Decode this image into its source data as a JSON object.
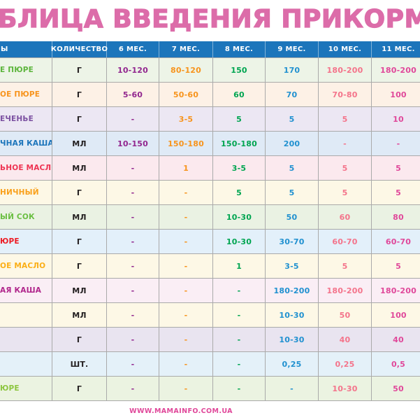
{
  "title": "БЛИЦА ВВЕДЕНИЯ ПРИКОРМА",
  "footer": {
    "url": "WWW.MAMAINFO.COM.UA"
  },
  "colors": {
    "title_pink": "#dc6ca9",
    "header_bg": "#1c75bb",
    "header_text": "#ffffff",
    "grid_border": "#aaaaaa",
    "unit_text": "#231f20",
    "footer_pink": "#e0489a"
  },
  "chart_data": {
    "type": "table",
    "title": "БЛИЦА ВВЕДЕНИЯ ПРИКОРМА",
    "columns": [
      "Ы",
      "КОЛИЧЕСТВО",
      "6 МЕС.",
      "7 МЕС.",
      "8 МЕС.",
      "9 МЕС.",
      "10 МЕС.",
      "11 МЕС."
    ],
    "value_colors": [
      "#92278f",
      "#f7941d",
      "#00a551",
      "#2191d0",
      "#f4748b",
      "#e0489a"
    ],
    "rows": [
      {
        "product": "Е ПЮРЕ",
        "product_color": "#5cb53c",
        "row_bg": "#edf4e7",
        "unit": "Г",
        "values": [
          "10-120",
          "80-120",
          "150",
          "170",
          "180-200",
          "180-200"
        ]
      },
      {
        "product": "ОЕ ПЮРЕ",
        "product_color": "#f7941d",
        "row_bg": "#fdf1e6",
        "unit": "Г",
        "values": [
          "5-60",
          "50-60",
          "60",
          "70",
          "70-80",
          "100"
        ]
      },
      {
        "product": "ЕЧЕНЬЕ",
        "product_color": "#7c51a1",
        "row_bg": "#ece7f3",
        "unit": "Г",
        "values": [
          "-",
          "3-5",
          "5",
          "5",
          "5",
          "10"
        ]
      },
      {
        "product": "ЧНАЯ КАША",
        "product_color": "#1c75bb",
        "row_bg": "#dfeaf6",
        "unit": "МЛ",
        "values": [
          "10-150",
          "150-180",
          "150-180",
          "200",
          "-",
          "-"
        ]
      },
      {
        "product": "ЬНОЕ МАСЛО",
        "product_color": "#ee3453",
        "row_bg": "#fbe9ee",
        "unit": "МЛ",
        "values": [
          "-",
          "1",
          "3-5",
          "5",
          "5",
          "5"
        ]
      },
      {
        "product": "НИЧНЫЙ",
        "product_color": "#f9a01b",
        "row_bg": "#fdf8e6",
        "unit": "Г",
        "values": [
          "-",
          "-",
          "5",
          "5",
          "5",
          "5"
        ]
      },
      {
        "product": "ЫЙ СОК",
        "product_color": "#6abf42",
        "row_bg": "#eaf2e3",
        "unit": "МЛ",
        "values": [
          "-",
          "-",
          "10-30",
          "50",
          "60",
          "80"
        ]
      },
      {
        "product": "ЮРЕ",
        "product_color": "#ed1c24",
        "row_bg": "#e3f0fa",
        "unit": "Г",
        "values": [
          "-",
          "-",
          "10-30",
          "30-70",
          "60-70",
          "60-70"
        ]
      },
      {
        "product": "ОЕ МАСЛО",
        "product_color": "#fbaf17",
        "row_bg": "#fdf8e6",
        "unit": "Г",
        "values": [
          "-",
          "-",
          "1",
          "3-5",
          "5",
          "5"
        ]
      },
      {
        "product": "АЯ КАША",
        "product_color": "#b0268c",
        "row_bg": "#faeef5",
        "unit": "МЛ",
        "values": [
          "-",
          "-",
          "-",
          "180-200",
          "180-200",
          "180-200"
        ]
      },
      {
        "product": "",
        "product_color": "#231f20",
        "row_bg": "#fdf8e6",
        "unit": "МЛ",
        "values": [
          "-",
          "-",
          "-",
          "10-30",
          "50",
          "100"
        ]
      },
      {
        "product": "",
        "product_color": "#231f20",
        "row_bg": "#e9e4f0",
        "unit": "Г",
        "values": [
          "-",
          "-",
          "-",
          "10-30",
          "40",
          "40"
        ]
      },
      {
        "product": "",
        "product_color": "#231f20",
        "row_bg": "#e4f1f9",
        "unit": "ШТ.",
        "values": [
          "-",
          "-",
          "-",
          "0,25",
          "0,25",
          "0,5"
        ]
      },
      {
        "product": "ЮРЕ",
        "product_color": "#8dc63f",
        "row_bg": "#ebf3e1",
        "unit": "Г",
        "values": [
          "-",
          "-",
          "-",
          "-",
          "10-30",
          "50"
        ]
      }
    ]
  }
}
